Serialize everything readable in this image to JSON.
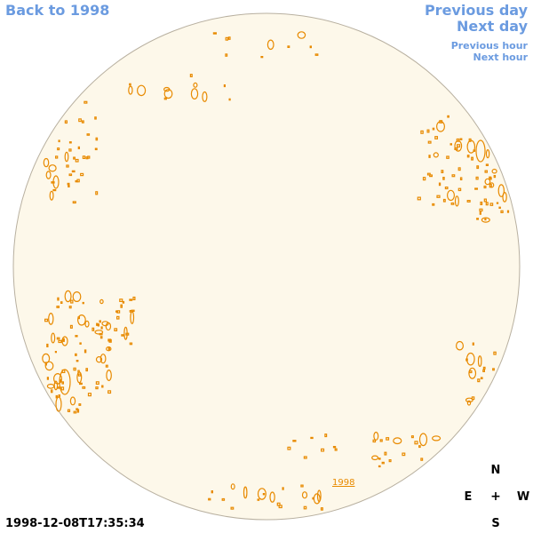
{
  "nav": {
    "back_label": "Back to 1998",
    "prev_day_label": "Previous day",
    "next_day_label": "Next day",
    "prev_hour_label": "Previous hour",
    "next_hour_label": "Next hour"
  },
  "sun_disk": {
    "year_link_label": "1998",
    "fill_color": "#fdf8ea",
    "border_color": "#b8b0a0",
    "contour_color": "#e88a00"
  },
  "timestamp": "1998-12-08T17:35:34",
  "compass": {
    "north": "N",
    "south": "S",
    "east": "E",
    "west": "W",
    "center": "+"
  }
}
